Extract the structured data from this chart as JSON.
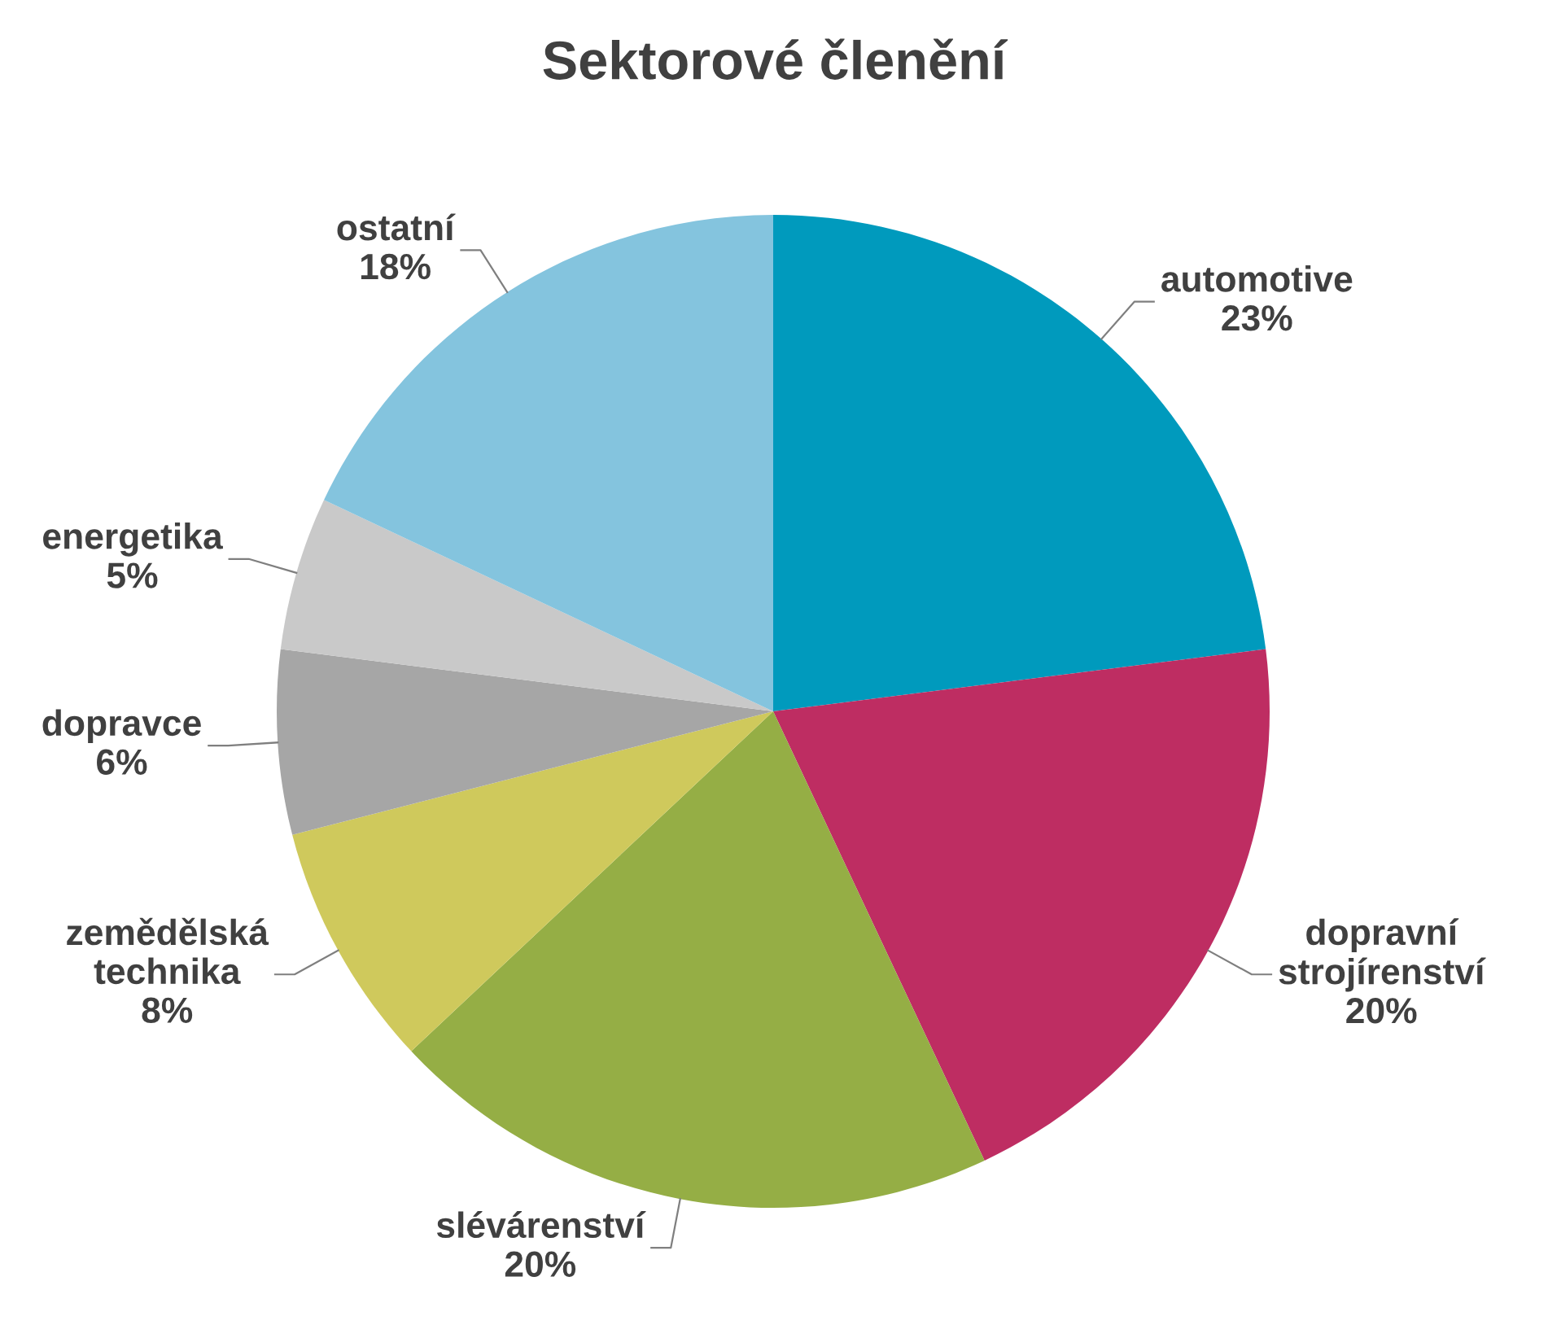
{
  "chart_data": {
    "type": "pie",
    "title": "Sektorové členění",
    "categories": [
      "automotive",
      "dopravní\nstrojírenství",
      "slévárenství",
      "zemědělská\ntechnika",
      "dopravce",
      "energetika",
      "ostatní"
    ],
    "values": [
      23,
      20,
      20,
      8,
      6,
      5,
      18
    ],
    "colors": [
      "#009abd",
      "#be2d62",
      "#95ae45",
      "#cfc95c",
      "#a6a6a6",
      "#c9c9c9",
      "#84c4de"
    ],
    "value_labels": [
      "23%",
      "20%",
      "20%",
      "8%",
      "6%",
      "5%",
      "18%"
    ],
    "legend": false
  }
}
